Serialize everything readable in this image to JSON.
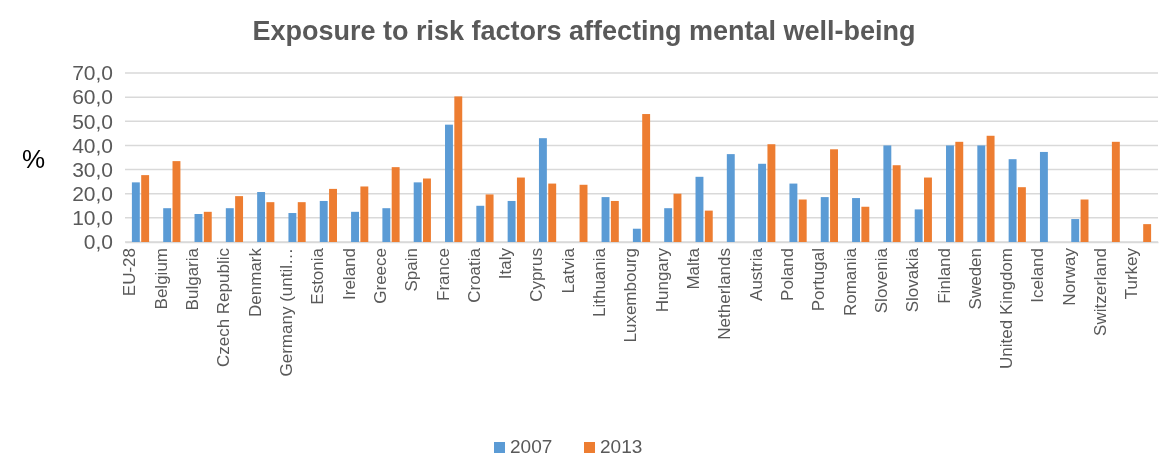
{
  "chart_data": {
    "type": "bar",
    "title": "Exposure to risk factors affecting mental well-being",
    "ylabel": "%",
    "categories": [
      "EU-28",
      "Belgium",
      "Bulgaria",
      "Czech Republic",
      "Denmark",
      "Germany (until…",
      "Estonia",
      "Ireland",
      "Greece",
      "Spain",
      "France",
      "Croatia",
      "Italy",
      "Cyprus",
      "Latvia",
      "Lithuania",
      "Luxembourg",
      "Hungary",
      "Malta",
      "Netherlands",
      "Austria",
      "Poland",
      "Portugal",
      "Romania",
      "Slovenia",
      "Slovakia",
      "Finland",
      "Sweden",
      "United Kingdom",
      "Iceland",
      "Norway",
      "Switzerland",
      "Turkey"
    ],
    "series": [
      {
        "name": "2007",
        "color": "#5b9bd5",
        "values": [
          24.7,
          14,
          11.6,
          14,
          20.7,
          12,
          17,
          12.5,
          14,
          24.7,
          48.6,
          15,
          17,
          43,
          null,
          18.6,
          5.5,
          14,
          27,
          36.4,
          32.4,
          24.2,
          18.6,
          18.2,
          40,
          13.5,
          40,
          40,
          34.3,
          37.3,
          9.5,
          null,
          null
        ]
      },
      {
        "name": "2013",
        "color": "#ed7d31",
        "values": [
          27.7,
          33.5,
          12.5,
          19,
          16.5,
          16.5,
          22,
          23,
          31,
          26.3,
          60.3,
          19.7,
          26.7,
          24.2,
          23.7,
          17,
          53,
          20,
          13,
          null,
          40.5,
          17.6,
          38.4,
          14.6,
          31.8,
          26.7,
          41.5,
          44,
          22.7,
          null,
          17.6,
          41.5,
          7.4
        ]
      }
    ],
    "ylim": [
      0,
      70
    ],
    "yticks": [
      {
        "value": 0,
        "label": "0,0"
      },
      {
        "value": 10,
        "label": "10,0"
      },
      {
        "value": 20,
        "label": "20,0"
      },
      {
        "value": 30,
        "label": "30,0"
      },
      {
        "value": 40,
        "label": "40,0"
      },
      {
        "value": 50,
        "label": "50,0"
      },
      {
        "value": 60,
        "label": "60,0"
      },
      {
        "value": 70,
        "label": "70,0"
      }
    ],
    "grid": "y",
    "legend": "bottom"
  }
}
